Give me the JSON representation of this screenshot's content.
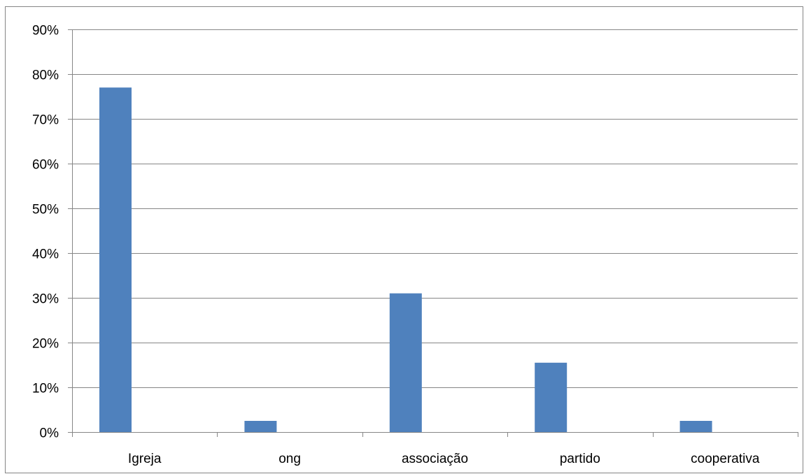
{
  "chart_data": {
    "type": "bar",
    "title": "",
    "xlabel": "",
    "ylabel": "",
    "categories": [
      "Igreja",
      "ong",
      "associação",
      "partido",
      "cooperativa"
    ],
    "values": [
      77,
      2.5,
      31,
      15.5,
      2.5
    ],
    "unit": "%",
    "ylim": [
      0,
      90
    ],
    "y_ticks": [
      "0%",
      "10%",
      "20%",
      "30%",
      "40%",
      "50%",
      "60%",
      "70%",
      "80%",
      "90%"
    ],
    "grid": true,
    "legend": "none",
    "bar_color": "#4f81bd",
    "grid_color": "#868686"
  }
}
